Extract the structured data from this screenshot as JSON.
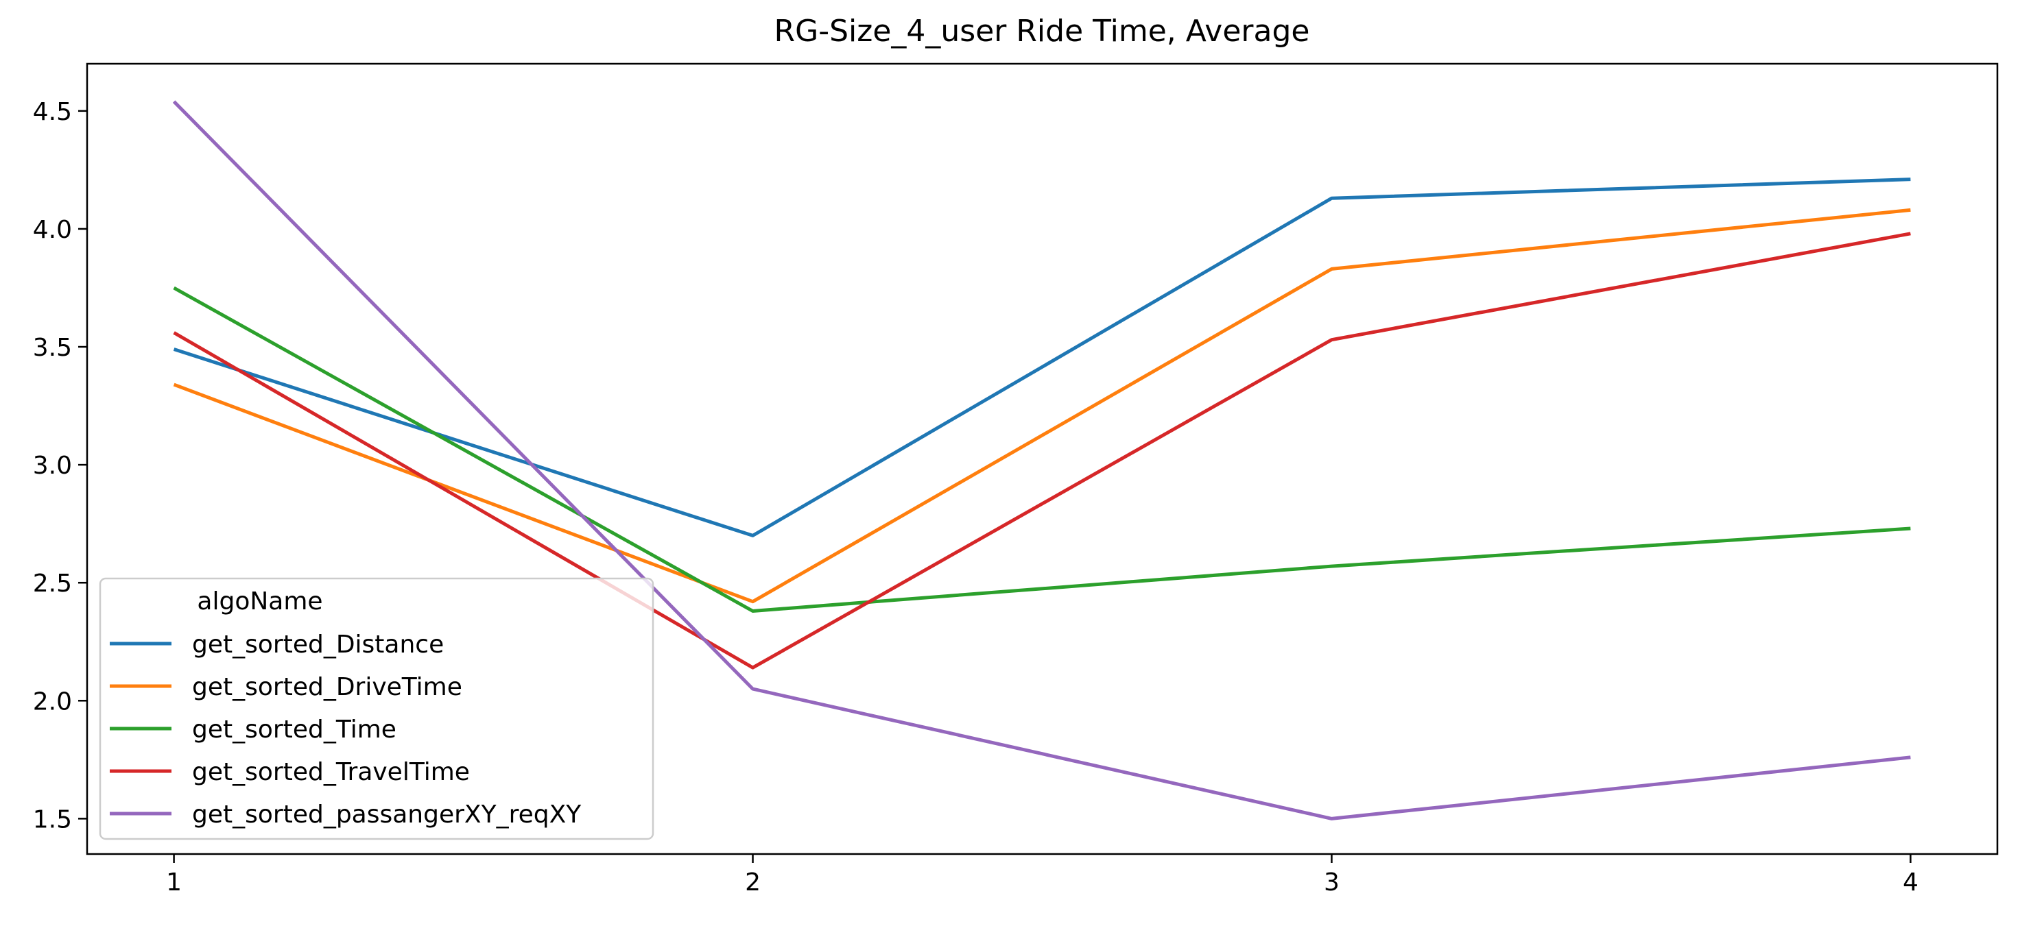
{
  "chart_data": {
    "type": "line",
    "title": "RG-Size_4_user Ride Time, Average",
    "xlabel": "",
    "ylabel": "",
    "x": [
      1,
      2,
      3,
      4
    ],
    "xticks": [
      "1",
      "2",
      "3",
      "4"
    ],
    "yticks": [
      "1.5",
      "2.0",
      "2.5",
      "3.0",
      "3.5",
      "4.0",
      "4.5"
    ],
    "ytick_values": [
      1.5,
      2.0,
      2.5,
      3.0,
      3.5,
      4.0,
      4.5
    ],
    "xlim": [
      0.85,
      4.15
    ],
    "ylim": [
      1.35,
      4.7
    ],
    "grid": false,
    "legend": {
      "title": "algoName",
      "placement": "lower-left"
    },
    "series": [
      {
        "name": "get_sorted_Distance",
        "color": "#1f77b4",
        "values": [
          3.49,
          2.7,
          4.13,
          4.21
        ]
      },
      {
        "name": "get_sorted_DriveTime",
        "color": "#ff7f0e",
        "values": [
          3.34,
          2.42,
          3.83,
          4.08
        ]
      },
      {
        "name": "get_sorted_Time",
        "color": "#2ca02c",
        "values": [
          3.75,
          2.38,
          2.57,
          2.73
        ]
      },
      {
        "name": "get_sorted_TravelTime",
        "color": "#d62728",
        "values": [
          3.56,
          2.14,
          3.53,
          3.98
        ]
      },
      {
        "name": "get_sorted_passangerXY_reqXY",
        "color": "#9467bd",
        "values": [
          4.54,
          2.05,
          1.5,
          1.76
        ]
      }
    ]
  }
}
